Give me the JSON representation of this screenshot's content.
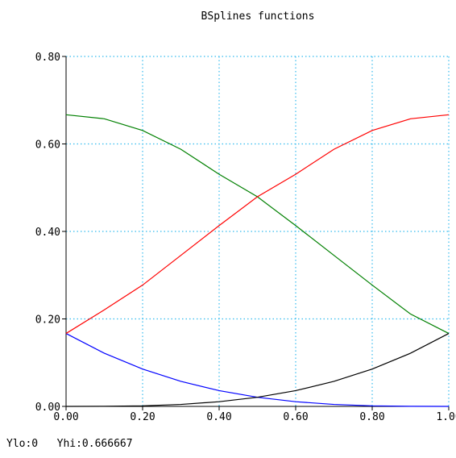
{
  "chart_data": {
    "type": "line",
    "title": "BSplines functions",
    "xlim": [
      0,
      1
    ],
    "ylim": [
      0,
      0.8
    ],
    "grid": true,
    "x_ticks": [
      "0.00",
      "0.20",
      "0.40",
      "0.60",
      "0.80",
      "1.00"
    ],
    "y_ticks": [
      "0.00",
      "0.20",
      "0.40",
      "0.60",
      "0.80"
    ],
    "x": [
      0,
      0.1,
      0.2,
      0.3,
      0.4,
      0.5,
      0.6,
      0.7,
      0.8,
      0.9,
      1.0
    ],
    "series": [
      {
        "color": "#0000ff",
        "values": [
          0.1667,
          0.1215,
          0.0853,
          0.0572,
          0.036,
          0.0208,
          0.0107,
          0.0045,
          0.0013,
          0.0002,
          0.0
        ]
      },
      {
        "color": "#008000",
        "values": [
          0.6667,
          0.6575,
          0.6307,
          0.5878,
          0.5307,
          0.4792,
          0.4133,
          0.3453,
          0.2773,
          0.2112,
          0.1667
        ]
      },
      {
        "color": "#ff0000",
        "values": [
          0.1667,
          0.2208,
          0.2773,
          0.3453,
          0.4133,
          0.4792,
          0.5307,
          0.5878,
          0.6307,
          0.6575,
          0.6667
        ]
      },
      {
        "color": "#000000",
        "values": [
          0.0,
          0.0002,
          0.0013,
          0.0045,
          0.0107,
          0.0208,
          0.036,
          0.0572,
          0.0853,
          0.1215,
          0.1667
        ]
      }
    ]
  },
  "footer": {
    "ylo": "Ylo:0",
    "yhi": "Yhi:0.666667"
  }
}
